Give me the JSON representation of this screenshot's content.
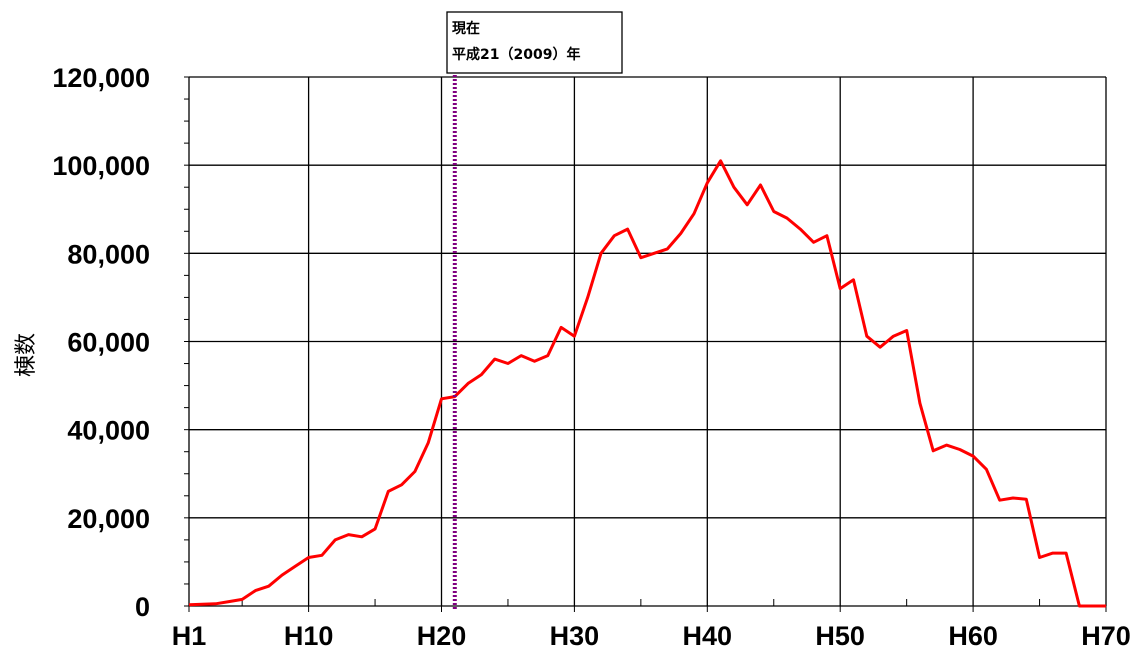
{
  "chart_data": {
    "type": "line",
    "ylabel": "棟数",
    "xlabel": "",
    "xlim": [
      1,
      70
    ],
    "ylim": [
      0,
      120000
    ],
    "grid": true,
    "x_ticks": [
      {
        "value": 1,
        "label": "H1"
      },
      {
        "value": 10,
        "label": "H10"
      },
      {
        "value": 20,
        "label": "H20"
      },
      {
        "value": 30,
        "label": "H30"
      },
      {
        "value": 40,
        "label": "H40"
      },
      {
        "value": 50,
        "label": "H50"
      },
      {
        "value": 60,
        "label": "H60"
      },
      {
        "value": 70,
        "label": "H70"
      }
    ],
    "y_ticks": [
      {
        "value": 0,
        "label": "0"
      },
      {
        "value": 20000,
        "label": "20,000"
      },
      {
        "value": 40000,
        "label": "40,000"
      },
      {
        "value": 60000,
        "label": "60,000"
      },
      {
        "value": 80000,
        "label": "80,000"
      },
      {
        "value": 100000,
        "label": "100,000"
      },
      {
        "value": 120000,
        "label": "120,000"
      }
    ],
    "minor_x_ticks": [
      5,
      15,
      25,
      35,
      45,
      55,
      65
    ],
    "series": [
      {
        "color": "#ff0000",
        "x": [
          1,
          2,
          3,
          4,
          5,
          6,
          7,
          8,
          9,
          10,
          11,
          12,
          13,
          14,
          15,
          16,
          17,
          18,
          19,
          20,
          21,
          22,
          23,
          24,
          25,
          26,
          27,
          28,
          29,
          30,
          31,
          32,
          33,
          34,
          35,
          36,
          37,
          38,
          39,
          40,
          41,
          42,
          43,
          44,
          45,
          46,
          47,
          48,
          49,
          50,
          51,
          52,
          53,
          54,
          55,
          56,
          57,
          58,
          59,
          60,
          61,
          62,
          63,
          64,
          65,
          66,
          67,
          68,
          69,
          70
        ],
        "y": [
          300,
          400,
          500,
          1000,
          1500,
          3500,
          4500,
          7000,
          9000,
          11000,
          11500,
          15000,
          16200,
          15700,
          17500,
          26000,
          27500,
          30500,
          37000,
          47000,
          47500,
          50500,
          52500,
          56000,
          55000,
          56800,
          55500,
          56800,
          63200,
          61200,
          70000,
          80000,
          84000,
          85500,
          79000,
          80000,
          81000,
          84500,
          89000,
          96000,
          101000,
          95000,
          91000,
          95500,
          89500,
          88000,
          85500,
          82500,
          84000,
          72000,
          74000,
          61200,
          58700,
          61200,
          62500,
          46000,
          35200,
          36500,
          35500,
          34000,
          31000,
          24000,
          24500,
          24200,
          11000,
          12000,
          12000,
          0,
          0,
          0
        ]
      }
    ],
    "annotations": [
      {
        "x": 21,
        "line_color": "#800080",
        "line_style": "dotted",
        "label_lines": [
          "現在",
          "平成21（2009）年"
        ]
      }
    ]
  }
}
